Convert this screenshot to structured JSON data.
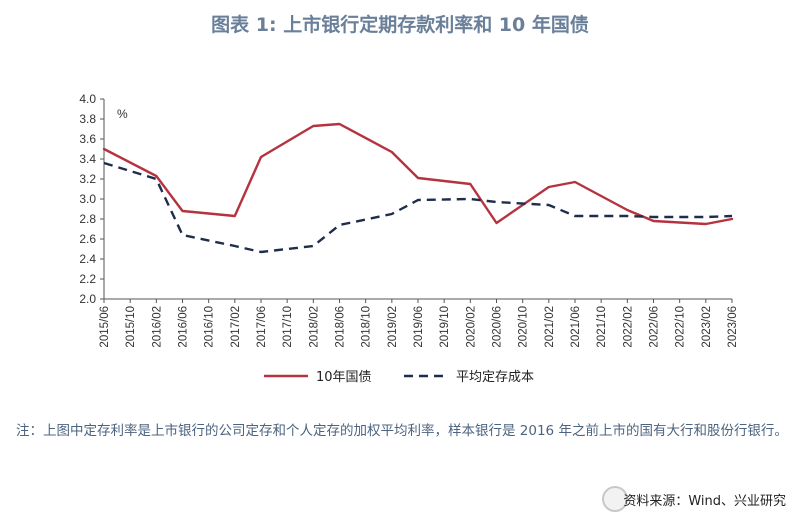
{
  "title": "图表 1:  上市银行定期存款利率和 10 年国债",
  "note": "注：上图中定存利率是上市银行的公司定存和个人定存的加权平均利率，样本银行是 2016 年之前上市的国有大行和股份行银行。",
  "source": "资料来源：Wind、兴业研究",
  "chart_data": {
    "type": "line",
    "ylabel": "%",
    "ylim": [
      2.0,
      4.0
    ],
    "yticks": [
      "4.0",
      "3.8",
      "3.6",
      "3.4",
      "3.2",
      "3.0",
      "2.8",
      "2.6",
      "2.4",
      "2.2",
      "2.0"
    ],
    "categories": [
      "2015/06",
      "2015/10",
      "2016/02",
      "2016/06",
      "2016/10",
      "2017/02",
      "2017/06",
      "2017/10",
      "2018/02",
      "2018/06",
      "2018/10",
      "2019/02",
      "2019/06",
      "2019/10",
      "2020/02",
      "2020/06",
      "2020/10",
      "2021/02",
      "2021/06",
      "2021/10",
      "2022/02",
      "2022/06",
      "2022/10",
      "2023/02",
      "2023/06"
    ],
    "legend_position": "bottom",
    "series": [
      {
        "name": "10年国债",
        "color": "#b5333f",
        "style": "solid",
        "x": [
          "2015/06",
          "2016/02",
          "2016/06",
          "2017/02",
          "2017/06",
          "2018/02",
          "2018/06",
          "2019/02",
          "2019/06",
          "2020/02",
          "2020/06",
          "2021/02",
          "2021/06",
          "2022/02",
          "2022/06",
          "2023/02",
          "2023/06"
        ],
        "values": [
          3.5,
          3.23,
          2.88,
          2.83,
          3.42,
          3.73,
          3.75,
          3.47,
          3.21,
          3.15,
          2.76,
          3.12,
          3.17,
          2.89,
          2.78,
          2.75,
          2.8
        ]
      },
      {
        "name": "平均定存成本",
        "color": "#1f2d4d",
        "style": "dashed",
        "x": [
          "2015/06",
          "2016/02",
          "2016/06",
          "2017/02",
          "2017/06",
          "2018/02",
          "2018/06",
          "2019/02",
          "2019/06",
          "2020/02",
          "2020/06",
          "2021/02",
          "2021/06",
          "2022/02",
          "2022/06",
          "2023/02",
          "2023/06"
        ],
        "values": [
          3.36,
          3.2,
          2.64,
          2.53,
          2.47,
          2.53,
          2.74,
          2.85,
          2.99,
          3.0,
          2.97,
          2.94,
          2.83,
          2.83,
          2.82,
          2.82,
          2.83
        ]
      }
    ]
  }
}
